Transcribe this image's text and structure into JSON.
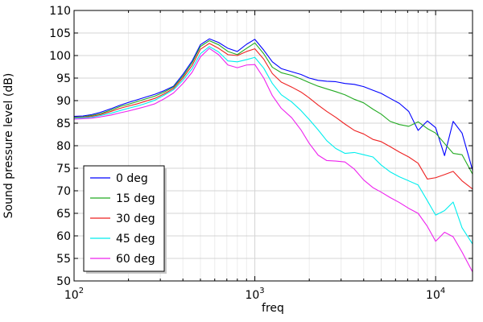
{
  "chart_data": {
    "type": "line",
    "title": "",
    "xlabel": "freq",
    "ylabel": "Sound pressure level (dB)",
    "x_scale": "log",
    "xlim": [
      100,
      16000
    ],
    "ylim": [
      50,
      110
    ],
    "y_ticks": [
      50,
      55,
      60,
      65,
      70,
      75,
      80,
      85,
      90,
      95,
      100,
      105,
      110
    ],
    "x_ticks": [
      100,
      1000,
      10000
    ],
    "x_tick_labels": [
      {
        "base": "10",
        "exp": "2"
      },
      {
        "base": "10",
        "exp": "3"
      },
      {
        "base": "10",
        "exp": "4"
      }
    ],
    "grid": true,
    "legend_position": "bottom-left",
    "x": [
      100,
      112,
      125,
      140,
      160,
      180,
      200,
      224,
      250,
      280,
      315,
      355,
      400,
      450,
      500,
      560,
      630,
      710,
      800,
      900,
      1000,
      1120,
      1250,
      1400,
      1600,
      1800,
      2000,
      2240,
      2500,
      2800,
      3150,
      3550,
      4000,
      4500,
      5000,
      5600,
      6300,
      7100,
      8000,
      9000,
      10000,
      11200,
      12500,
      14000,
      16000
    ],
    "series": [
      {
        "name": "0 deg",
        "color": "#0000ff",
        "values": [
          86.5,
          86.6,
          86.9,
          87.4,
          88.2,
          89.0,
          89.6,
          90.2,
          90.8,
          91.4,
          92.2,
          93.2,
          95.8,
          98.8,
          102.4,
          103.7,
          102.9,
          101.6,
          100.9,
          102.5,
          103.6,
          101.2,
          98.6,
          97.1,
          96.4,
          95.8,
          95.0,
          94.5,
          94.3,
          94.2,
          93.8,
          93.6,
          93.1,
          92.3,
          91.6,
          90.5,
          89.4,
          87.6,
          83.4,
          85.5,
          84.0,
          77.8,
          85.4,
          82.8,
          74.6
        ]
      },
      {
        "name": "15 deg",
        "color": "#22aa22",
        "values": [
          86.3,
          86.4,
          86.7,
          87.1,
          87.9,
          88.7,
          89.2,
          89.8,
          90.4,
          91.0,
          91.9,
          93.0,
          95.4,
          98.4,
          102.0,
          103.3,
          102.4,
          100.9,
          100.2,
          101.6,
          102.8,
          100.4,
          97.4,
          96.2,
          95.6,
          94.8,
          94.0,
          93.2,
          92.6,
          92.0,
          91.3,
          90.3,
          89.5,
          88.1,
          87.0,
          85.4,
          84.7,
          84.3,
          85.3,
          83.8,
          82.8,
          80.5,
          78.3,
          78.0,
          73.7
        ]
      },
      {
        "name": "30 deg",
        "color": "#ee2222",
        "values": [
          86.2,
          86.3,
          86.5,
          86.9,
          87.6,
          88.3,
          88.8,
          89.3,
          89.9,
          90.5,
          91.5,
          92.7,
          95.0,
          97.8,
          101.4,
          102.7,
          101.6,
          100.2,
          100.0,
          100.9,
          101.5,
          99.2,
          96.0,
          94.1,
          93.0,
          91.9,
          90.6,
          89.0,
          87.6,
          86.3,
          84.8,
          83.4,
          82.6,
          81.4,
          80.9,
          79.8,
          78.6,
          77.5,
          76.1,
          72.6,
          72.9,
          73.6,
          74.3,
          72.2,
          70.4
        ]
      },
      {
        "name": "45 deg",
        "color": "#00eeee",
        "values": [
          86.1,
          86.2,
          86.3,
          86.7,
          87.2,
          87.8,
          88.3,
          88.8,
          89.4,
          90.1,
          91.2,
          92.4,
          94.5,
          97.1,
          100.4,
          102.0,
          100.8,
          98.8,
          98.6,
          99.1,
          99.6,
          97.2,
          93.8,
          91.3,
          89.7,
          87.8,
          85.8,
          83.5,
          81.1,
          79.4,
          78.3,
          78.5,
          78.0,
          77.5,
          75.7,
          74.2,
          73.1,
          72.2,
          71.3,
          67.8,
          64.6,
          65.6,
          67.5,
          61.8,
          58.2
        ]
      },
      {
        "name": "60 deg",
        "color": "#ee22ee",
        "values": [
          85.9,
          86.0,
          86.1,
          86.4,
          86.8,
          87.3,
          87.7,
          88.2,
          88.7,
          89.3,
          90.4,
          91.7,
          93.8,
          96.3,
          99.7,
          101.6,
          100.2,
          97.9,
          97.3,
          97.9,
          98.0,
          95.0,
          91.1,
          88.3,
          86.2,
          83.5,
          80.5,
          77.9,
          76.7,
          76.6,
          76.4,
          74.8,
          72.4,
          70.7,
          69.7,
          68.5,
          67.4,
          66.1,
          65.0,
          62.1,
          58.8,
          60.8,
          59.8,
          56.4,
          52.0
        ]
      }
    ]
  }
}
